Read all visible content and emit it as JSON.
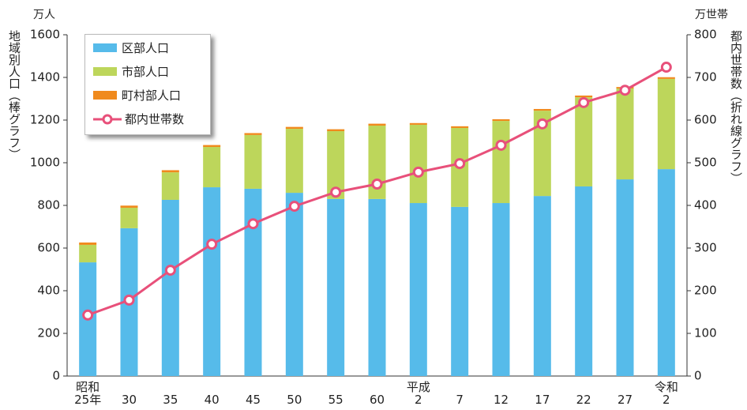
{
  "chart_data": {
    "type": "bar",
    "stacked": true,
    "y_unit": "万人",
    "y2_unit": "万世帯",
    "ylabel": "地域別人口（棒グラフ）",
    "y2label": "都内世帯数（折れ線グラフ）",
    "categories": [
      "昭和\n25年",
      "30",
      "35",
      "40",
      "45",
      "50",
      "55",
      "60",
      "平成\n2",
      "7",
      "12",
      "17",
      "22",
      "27",
      "令和\n2"
    ],
    "series": [
      {
        "name": "区部人口",
        "type": "bar",
        "color": "#56bbea",
        "values": [
          533,
          693,
          826,
          885,
          878,
          859,
          830,
          830,
          811,
          793,
          811,
          844,
          889,
          922,
          970
        ]
      },
      {
        "name": "市部人口",
        "type": "bar",
        "color": "#bdd65b",
        "values": [
          82,
          96,
          129,
          189,
          252,
          300,
          318,
          344,
          367,
          370,
          385,
          400,
          418,
          426,
          423
        ]
      },
      {
        "name": "町村部人口",
        "type": "bar",
        "color": "#f08a1d",
        "values": [
          11,
          10,
          10,
          9,
          9,
          9,
          9,
          9,
          8,
          8,
          8,
          8,
          8,
          7,
          8
        ]
      },
      {
        "name": "都内世帯数",
        "type": "line",
        "axis": "y2",
        "color": "#e8507a",
        "values": [
          143,
          178,
          248,
          309,
          357,
          398,
          431,
          450,
          478,
          498,
          541,
          591,
          641,
          670,
          724
        ]
      }
    ],
    "ylim": [
      0,
      1600
    ],
    "yticks": [
      0,
      200,
      400,
      600,
      800,
      1000,
      1200,
      1400,
      1600
    ],
    "y2lim": [
      0,
      800
    ],
    "y2ticks": [
      0,
      100,
      200,
      300,
      400,
      500,
      600,
      700,
      800
    ],
    "grid": false,
    "legend": "upper left"
  }
}
